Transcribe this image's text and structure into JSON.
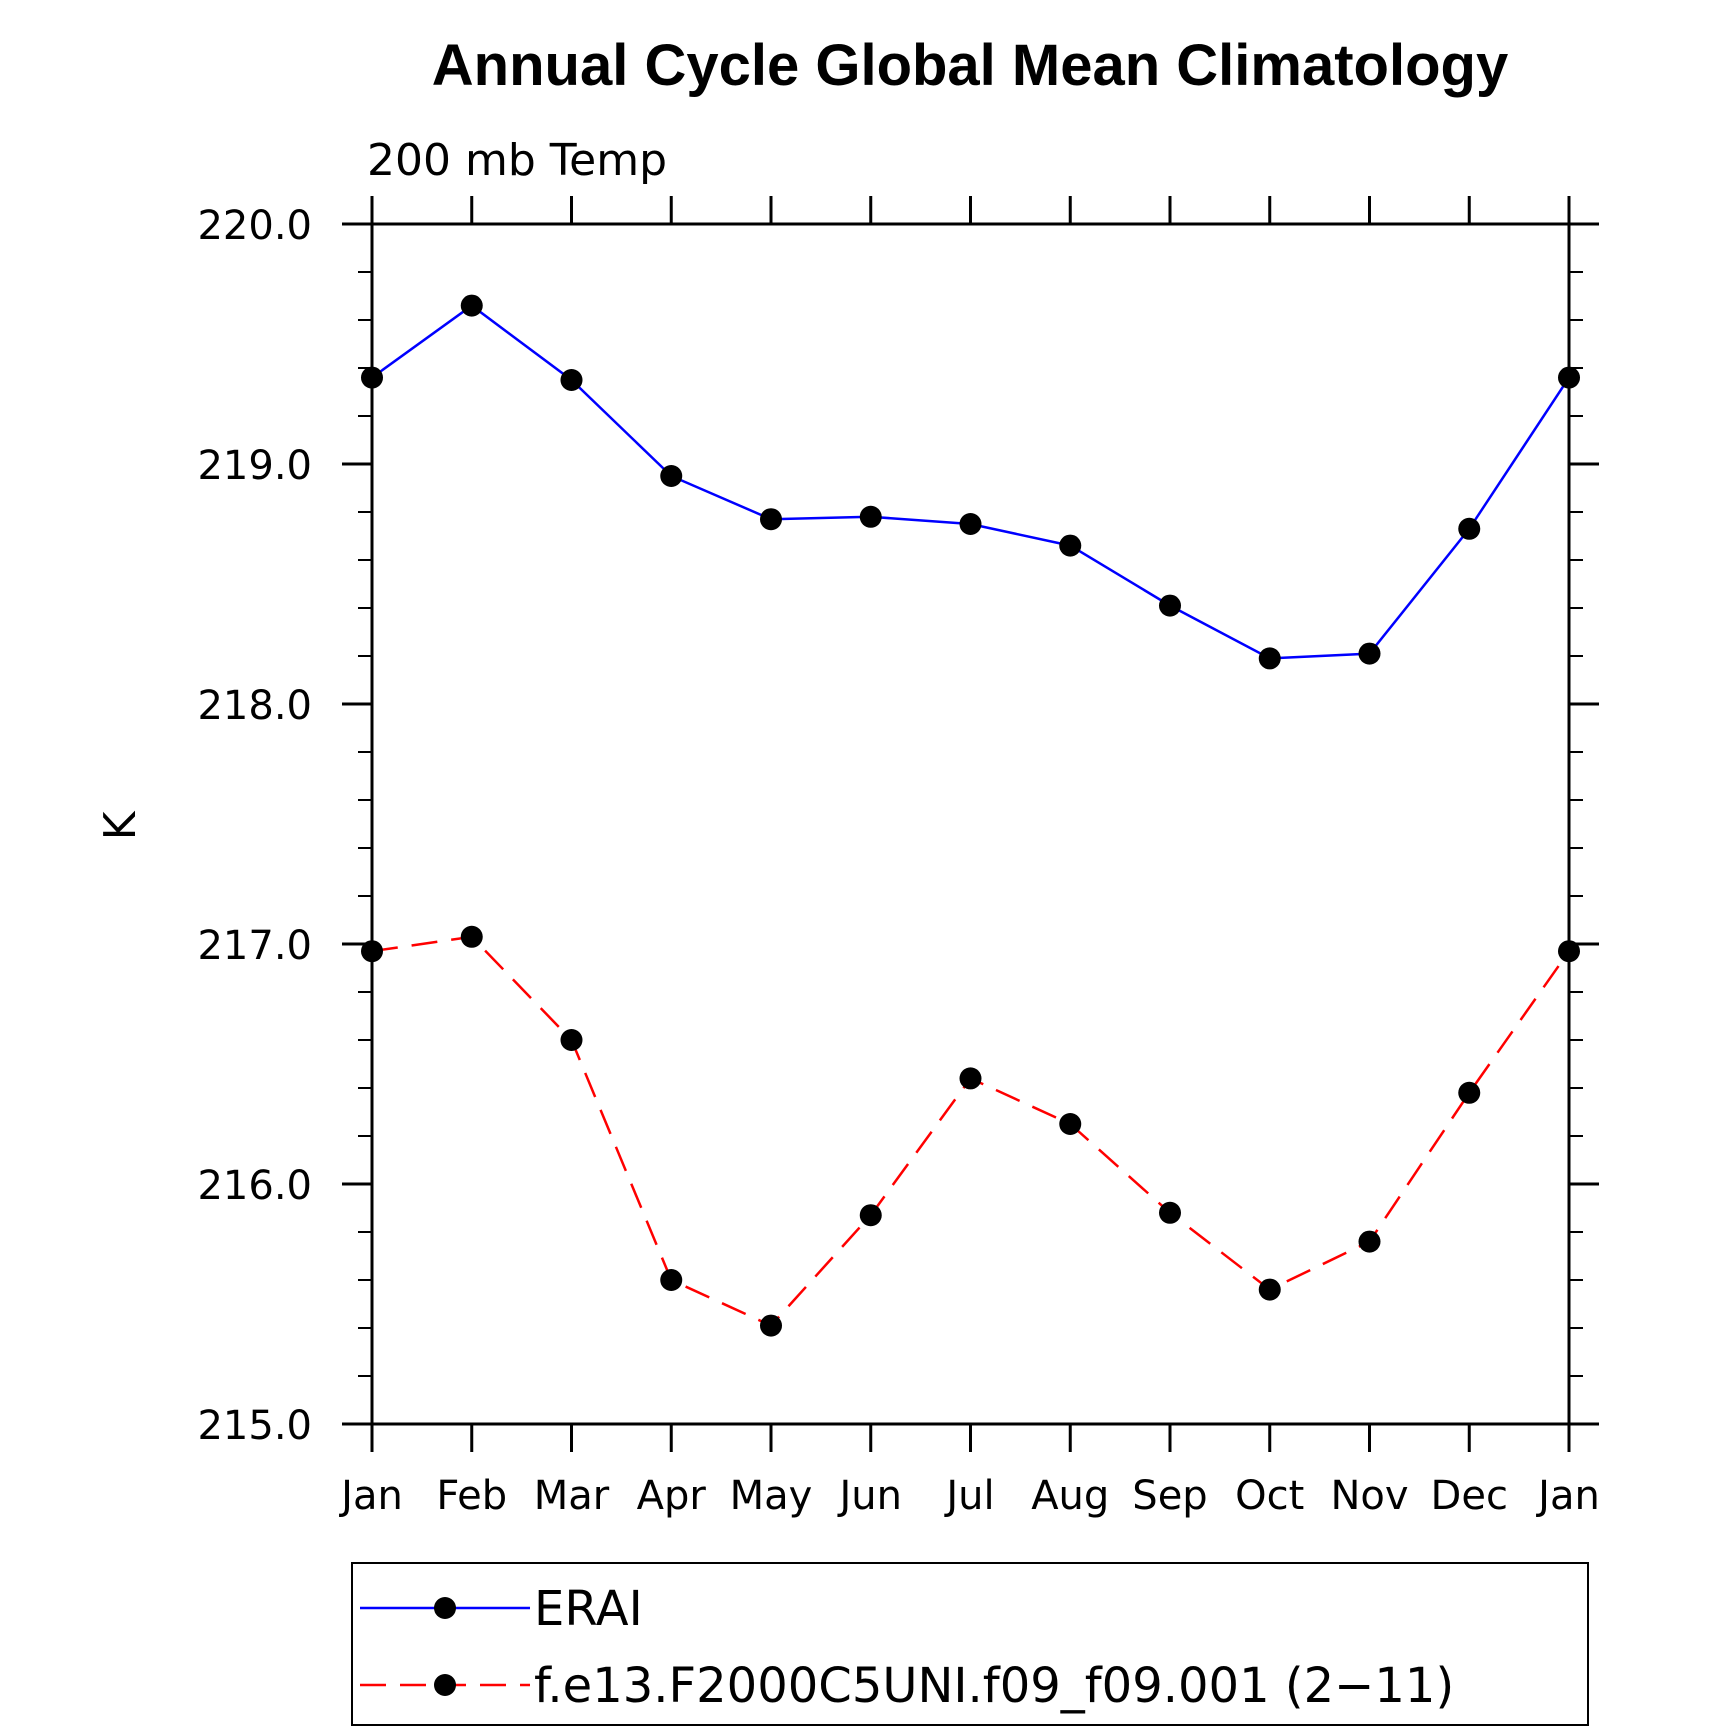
{
  "chart_data": {
    "type": "line",
    "title": "Annual Cycle Global Mean Climatology",
    "subtitle": "200 mb Temp",
    "ylabel": "K",
    "xlabel": "",
    "categories": [
      "Jan",
      "Feb",
      "Mar",
      "Apr",
      "May",
      "Jun",
      "Jul",
      "Aug",
      "Sep",
      "Oct",
      "Nov",
      "Dec",
      "Jan"
    ],
    "y_tick_labels": [
      "215.0",
      "216.0",
      "217.0",
      "218.0",
      "219.0",
      "220.0"
    ],
    "ylim": [
      215.0,
      220.0
    ],
    "grid": false,
    "legend_position": "bottom",
    "series": [
      {
        "name": "ERAI",
        "color": "#0000ff",
        "line_style": "solid",
        "marker": "filled-circle",
        "values": [
          219.36,
          219.66,
          219.35,
          218.95,
          218.77,
          218.78,
          218.75,
          218.66,
          218.41,
          218.19,
          218.21,
          218.73,
          219.36
        ]
      },
      {
        "name": "f.e13.F2000C5UNI.f09_f09.001 (2−11)",
        "color": "#ff0000",
        "line_style": "dashed",
        "marker": "filled-circle",
        "values": [
          216.97,
          217.03,
          216.6,
          215.6,
          215.41,
          215.87,
          216.44,
          216.25,
          215.88,
          215.56,
          215.76,
          216.38,
          216.97
        ]
      }
    ]
  }
}
